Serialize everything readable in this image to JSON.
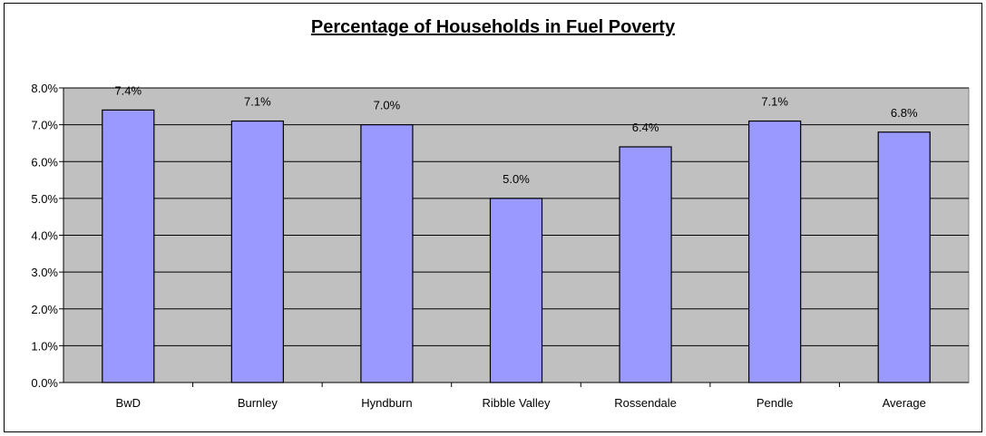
{
  "chart_data": {
    "type": "bar",
    "title": "Percentage of Households in Fuel Poverty",
    "xlabel": "",
    "ylabel": "",
    "categories": [
      "BwD",
      "Burnley",
      "Hyndburn",
      "Ribble Valley",
      "Rossendale",
      "Pendle",
      "Average"
    ],
    "values": [
      7.4,
      7.1,
      7.0,
      5.0,
      6.4,
      7.1,
      6.8
    ],
    "data_labels": [
      "7.4%",
      "7.1%",
      "7.0%",
      "5.0%",
      "6.4%",
      "7.1%",
      "6.8%"
    ],
    "yticks": [
      "0.0%",
      "1.0%",
      "2.0%",
      "3.0%",
      "4.0%",
      "5.0%",
      "6.0%",
      "7.0%",
      "8.0%"
    ],
    "ylim": [
      0,
      8
    ],
    "grid": true,
    "legend": "none",
    "colors": {
      "bar": "#9999ff",
      "plot_background": "#c0c0c0",
      "bar_border": "#000000"
    }
  }
}
